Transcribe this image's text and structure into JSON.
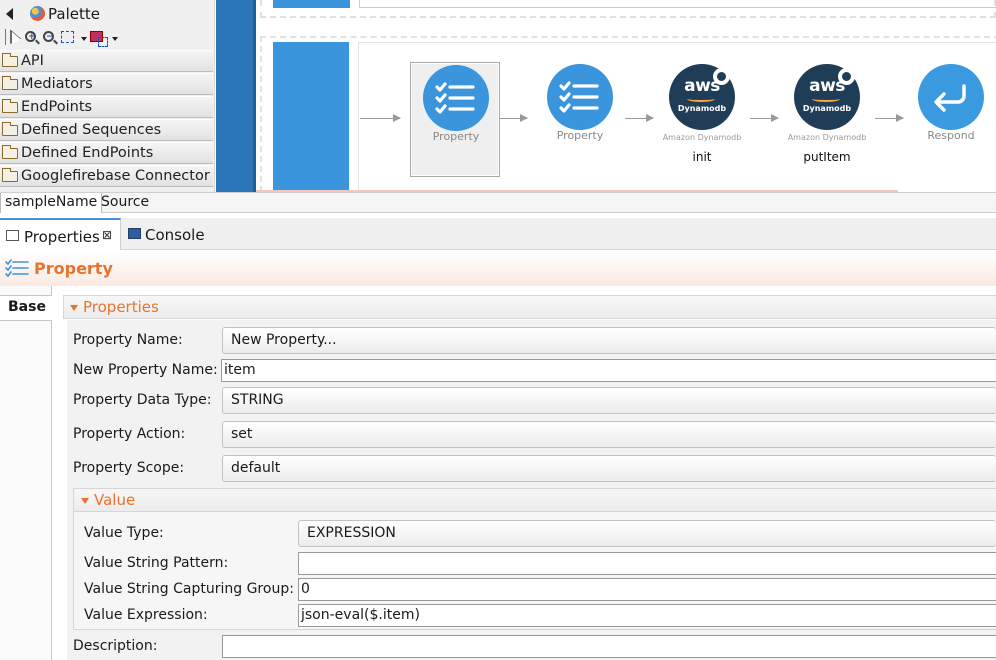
{
  "palette": {
    "title": "Palette",
    "drawers": [
      "API",
      "Mediators",
      "EndPoints",
      "Defined Sequences",
      "Defined EndPoints",
      "Googlefirebase Connector"
    ]
  },
  "canvas": {
    "mediators": [
      {
        "caption": "Property",
        "subcaption": "",
        "name": "",
        "type": "property",
        "selected": true
      },
      {
        "caption": "Property",
        "subcaption": "",
        "name": "",
        "type": "property",
        "selected": false
      },
      {
        "caption": "",
        "subcaption": "Amazon Dynamodb",
        "name": "init",
        "type": "aws",
        "selected": false
      },
      {
        "caption": "",
        "subcaption": "Amazon Dynamodb",
        "name": "putItem",
        "type": "aws",
        "selected": false
      },
      {
        "caption": "Respond",
        "subcaption": "",
        "name": "",
        "type": "respond",
        "selected": false
      }
    ],
    "aws_logo": "aws",
    "aws_sub": "Dynamodb"
  },
  "editor_tabs": [
    "sampleName",
    "Source"
  ],
  "view_tabs": {
    "properties": "Properties",
    "console": "Console",
    "close": "⊠"
  },
  "prop_header": {
    "title": "Property"
  },
  "left_tabs": {
    "base": "Base"
  },
  "properties_section": {
    "title": "Properties",
    "fields": {
      "property_name": {
        "label": "Property Name:",
        "value": "New Property..."
      },
      "new_property_name": {
        "label": "New Property Name:",
        "value": "item"
      },
      "property_data_type": {
        "label": "Property Data Type:",
        "value": "STRING"
      },
      "property_action": {
        "label": "Property Action:",
        "value": "set"
      },
      "property_scope": {
        "label": "Property Scope:",
        "value": "default"
      },
      "description": {
        "label": "Description:",
        "value": ""
      }
    }
  },
  "value_section": {
    "title": "Value",
    "fields": {
      "value_type": {
        "label": "Value Type:",
        "value": "EXPRESSION"
      },
      "value_string_pattern": {
        "label": "Value String Pattern:",
        "value": ""
      },
      "value_string_capturing_group": {
        "label": "Value String Capturing Group:",
        "value": "0"
      },
      "value_expression": {
        "label": "Value Expression:",
        "value": "json-eval($.item)"
      }
    }
  },
  "colors": {
    "accent": "#e8732c",
    "mediator_blue": "#3a95dd",
    "aws_navy": "#1f3d57",
    "strip_blue": "#2a76b9"
  }
}
